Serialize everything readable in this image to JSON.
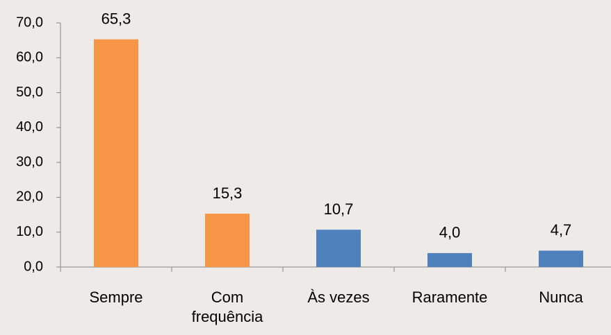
{
  "chart_data": {
    "type": "bar",
    "categories": [
      "Sempre",
      "Com frequência",
      "Às vezes",
      "Raramente",
      "Nunca"
    ],
    "values": [
      65.3,
      15.3,
      10.7,
      4.0,
      4.7
    ],
    "value_labels": [
      "65,3",
      "15,3",
      "10,7",
      "4,0",
      "4,7"
    ],
    "colors": [
      "#f79646",
      "#f79646",
      "#4f81bd",
      "#4f81bd",
      "#4f81bd"
    ],
    "ylim": [
      0,
      70
    ],
    "yticks": [
      {
        "value": 0,
        "label": "0,0"
      },
      {
        "value": 10,
        "label": "10,0"
      },
      {
        "value": 20,
        "label": "20,0"
      },
      {
        "value": 30,
        "label": "30,0"
      },
      {
        "value": 40,
        "label": "40,0"
      },
      {
        "value": 50,
        "label": "50,0"
      },
      {
        "value": 60,
        "label": "60,0"
      },
      {
        "value": 70,
        "label": "70,0"
      }
    ],
    "grid": false
  }
}
